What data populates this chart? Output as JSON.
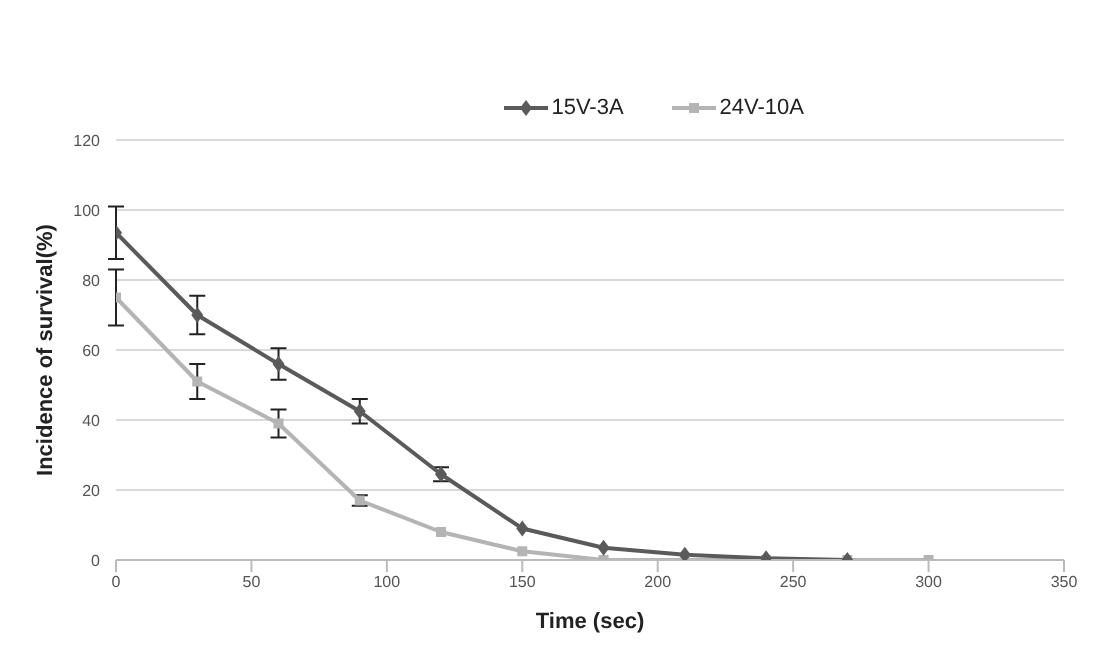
{
  "chart_data": {
    "type": "line",
    "xlabel": "Time  (sec)",
    "ylabel": "Incidence of survival(%)",
    "x": [
      0,
      30,
      60,
      90,
      120,
      150,
      180,
      210,
      240,
      270,
      300
    ],
    "series": [
      {
        "name": "15V-3A",
        "color": "#5a5a5a",
        "marker": "diamond",
        "values": [
          93.5,
          70,
          56,
          42.5,
          24.5,
          9,
          3.5,
          1.5,
          0.5,
          0,
          null
        ],
        "errors": [
          7.5,
          5.5,
          4.5,
          3.5,
          2,
          null,
          null,
          null,
          null,
          null,
          null
        ]
      },
      {
        "name": "24V-10A",
        "color": "#b4b4b4",
        "marker": "square",
        "values": [
          75,
          51,
          39,
          17,
          8,
          2.5,
          0,
          0,
          0,
          0,
          0
        ],
        "errors": [
          8,
          5,
          4,
          1.5,
          null,
          null,
          null,
          null,
          null,
          null,
          null
        ]
      }
    ],
    "xlim": [
      0,
      350
    ],
    "xticks": [
      0,
      50,
      100,
      150,
      200,
      250,
      300,
      350
    ],
    "ylim": [
      0,
      120
    ],
    "yticks": [
      0,
      20,
      40,
      60,
      80,
      100,
      120
    ],
    "grid": "y",
    "legend": "top right"
  }
}
